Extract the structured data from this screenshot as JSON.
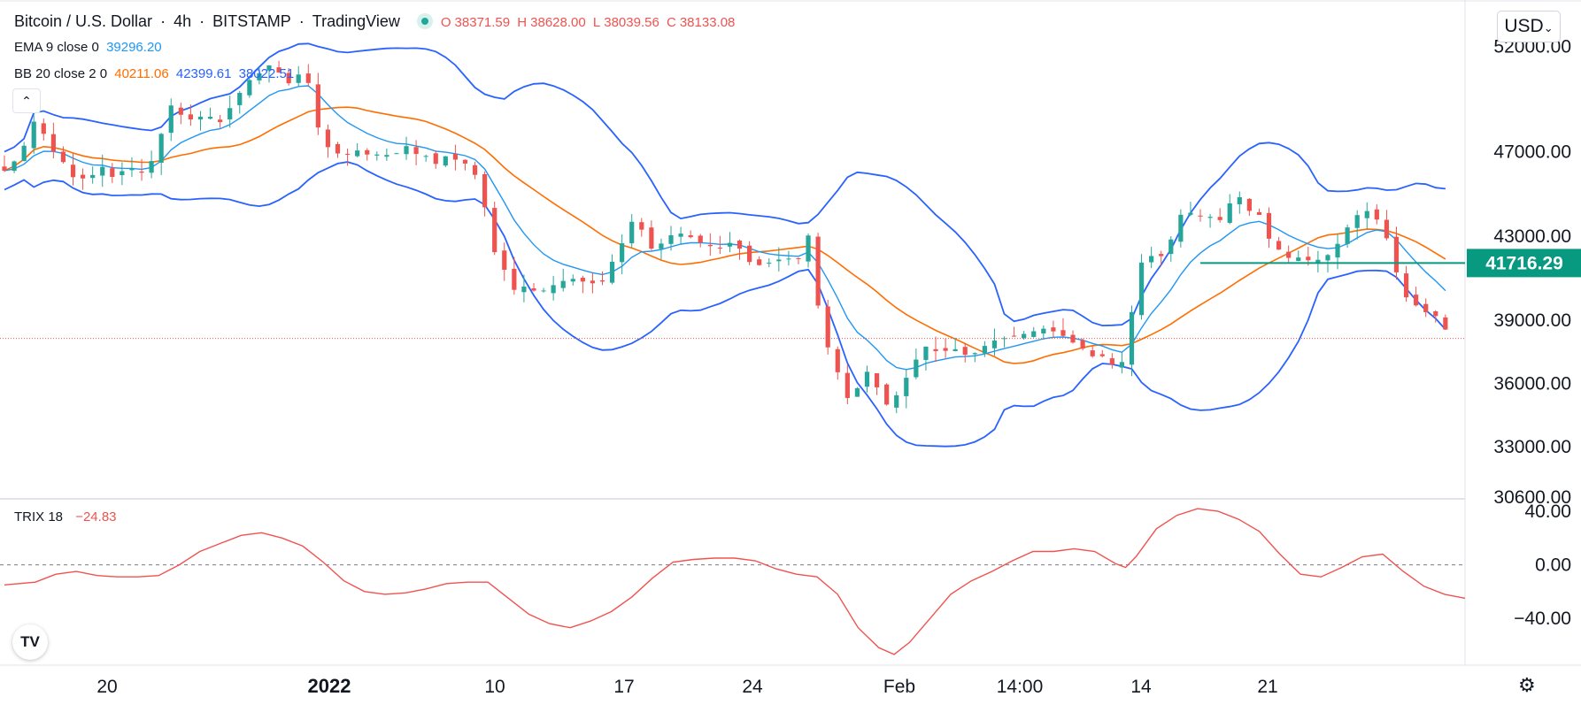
{
  "header": {
    "symbol": "Bitcoin / U.S. Dollar",
    "interval": "4h",
    "exchange": "BITSTAMP",
    "source": "TradingView",
    "open_label": "O",
    "open": "38371.59",
    "high_label": "H",
    "high": "38628.00",
    "low_label": "L",
    "low": "38039.56",
    "close_label": "C",
    "close": "38133.08"
  },
  "indicators": {
    "ema": {
      "label": "EMA 9 close 0",
      "value": "39296.20"
    },
    "bb": {
      "label": "BB 20 close 2 0",
      "basis": "40211.06",
      "upper": "42399.61",
      "lower": "38022.51"
    },
    "trix": {
      "label": "TRIX 18",
      "value": "−24.83"
    }
  },
  "currency": "USD",
  "colors": {
    "up": "#26a69a",
    "down": "#ef5350",
    "ema": "#2196f3",
    "bb_basis": "#ff6d00",
    "bb_band": "#2962ff",
    "trix": "#ef5350",
    "hline": "#089981"
  },
  "icons": {
    "collapse": "chevron-up-icon",
    "logo": "tradingview-logo-icon",
    "settings": "gear-icon",
    "live": "live-status-dot-icon"
  },
  "chart_data": [
    {
      "type": "candlestick",
      "series_visible": [
        "Bitcoin / U.S. Dollar",
        "EMA 9",
        "BB 20 upper",
        "BB 20 basis",
        "BB 20 lower"
      ],
      "y_ticks": [
        "52000.00",
        "47000.00",
        "43000.00",
        "39000.00",
        "36000.00",
        "33000.00",
        "30600.00"
      ],
      "x_ticks": [
        "20",
        "2022",
        "10",
        "17",
        "24",
        "Feb",
        "14:00",
        "14",
        "21"
      ],
      "ylim": [
        30600,
        54000
      ],
      "horizontal_line": {
        "value": 41716.29,
        "label": "41716.29"
      },
      "last_price": 38133.08,
      "close_path_x": [
        0,
        15,
        30,
        42,
        50,
        60,
        70,
        78,
        86,
        95,
        105,
        115,
        125,
        138,
        150,
        162,
        175,
        185,
        195,
        210,
        225,
        235,
        250,
        262,
        272,
        280,
        288,
        293,
        300,
        310,
        320,
        330,
        345,
        355,
        365,
        378,
        390,
        400,
        410,
        420,
        428,
        440,
        455,
        468,
        474,
        480,
        488,
        496,
        505,
        520,
        535,
        550,
        565,
        580,
        590,
        600,
        608,
        616,
        623,
        630,
        640,
        652,
        665,
        680,
        695,
        710,
        722,
        735,
        748,
        760,
        770,
        780,
        786,
        790,
        795,
        800,
        806,
        812,
        818,
        824,
        830,
        838,
        846,
        853,
        860,
        868,
        876,
        884,
        892,
        900,
        910,
        920,
        930,
        940,
        950,
        965,
        980,
        995,
        1010,
        1025,
        1040,
        1050,
        1060,
        1068,
        1076,
        1084,
        1092,
        1100,
        1110,
        1120,
        1130,
        1140,
        1150,
        1160,
        1170,
        1180,
        1190,
        1200,
        1210,
        1220,
        1230,
        1240,
        1250,
        1260,
        1270,
        1280,
        1290,
        1300,
        1310,
        1318,
        1326,
        1334,
        1342,
        1350,
        1360,
        1370,
        1380,
        1390,
        1400,
        1410,
        1420
      ],
      "close_path": [
        46100,
        46800,
        48600,
        47500,
        46800,
        46400,
        45500,
        45800,
        45900,
        46300,
        45800,
        46100,
        46200,
        45900,
        47500,
        49200,
        48600,
        48500,
        48800,
        48400,
        49500,
        50300,
        50800,
        51300,
        50200,
        50300,
        50800,
        51000,
        48900,
        47400,
        47000,
        46800,
        47100,
        46800,
        46900,
        46800,
        47300,
        46900,
        46800,
        46400,
        46800,
        46600,
        46300,
        44200,
        42400,
        42000,
        41200,
        40400,
        40600,
        40300,
        40700,
        41000,
        40800,
        40700,
        41700,
        42600,
        43700,
        43600,
        43000,
        42300,
        42700,
        43200,
        43000,
        42600,
        42400,
        42800,
        41800,
        41600,
        41800,
        42000,
        41700,
        42900,
        43400,
        40100,
        38100,
        37800,
        36800,
        36400,
        35200,
        35600,
        35800,
        36600,
        36000,
        35400,
        34800,
        35500,
        36200,
        36900,
        37700,
        37800,
        37300,
        37800,
        37400,
        37300,
        37700,
        38100,
        38200,
        38400,
        38600,
        38400,
        37900,
        37600,
        37200,
        37300,
        36900,
        36800,
        37500,
        41300,
        42100,
        42000,
        42100,
        43900,
        44200,
        43900,
        44000,
        43600,
        44500,
        44900,
        44200,
        44000,
        42800,
        42300,
        41900,
        42000,
        41800,
        41900,
        42200,
        42900,
        43800,
        44100,
        44200,
        43800,
        43200,
        41800,
        40200,
        39800,
        39400,
        39300,
        38600,
        38133
      ]
    },
    {
      "type": "line",
      "title": "TRIX 18",
      "series": [
        {
          "name": "TRIX 18",
          "x": [
            0,
            30,
            50,
            70,
            90,
            110,
            130,
            150,
            170,
            190,
            210,
            230,
            250,
            270,
            290,
            310,
            330,
            350,
            370,
            390,
            410,
            430,
            450,
            470,
            490,
            510,
            530,
            550,
            570,
            590,
            610,
            630,
            650,
            670,
            690,
            710,
            730,
            750,
            770,
            790,
            810,
            830,
            850,
            865,
            880,
            900,
            920,
            940,
            960,
            980,
            1000,
            1020,
            1040,
            1060,
            1080,
            1090,
            1100,
            1120,
            1140,
            1160,
            1180,
            1200,
            1220,
            1240,
            1260,
            1280,
            1300,
            1320,
            1340,
            1360,
            1380,
            1400,
            1420
          ],
          "values": [
            -15,
            -13,
            -7,
            -5,
            -8,
            -9,
            -9,
            -8,
            0,
            10,
            16,
            22,
            24,
            20,
            14,
            2,
            -12,
            -20,
            -22,
            -21,
            -18,
            -14,
            -13,
            -13,
            -25,
            -37,
            -44,
            -47,
            -42,
            -35,
            -24,
            -10,
            2,
            4,
            5,
            5,
            3,
            -3,
            -7,
            -9,
            -22,
            -47,
            -62,
            -67,
            -58,
            -40,
            -22,
            -12,
            -5,
            3,
            10,
            10,
            12,
            10,
            1,
            -2,
            6,
            27,
            37,
            42,
            40,
            34,
            25,
            8,
            -7,
            -9,
            -2,
            6,
            8,
            -5,
            -16,
            -22,
            -25
          ]
        }
      ],
      "y_ticks": [
        "40.00",
        "0.00",
        "−40.00"
      ],
      "ylim": [
        -75,
        48
      ],
      "zero_line": 0
    }
  ]
}
